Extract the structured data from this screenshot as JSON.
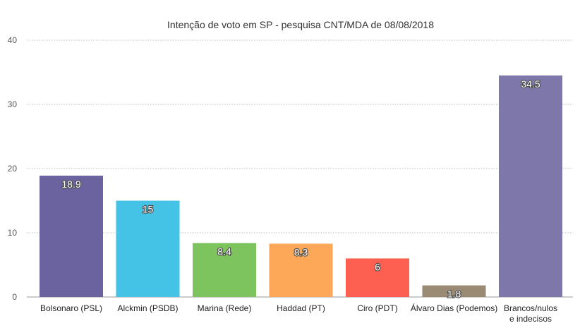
{
  "chart_data": {
    "type": "bar",
    "title": "Intenção de voto em SP - pesquisa CNT/MDA de 08/08/2018",
    "xlabel": "",
    "ylabel": "",
    "ylim": [
      0,
      40
    ],
    "yticks": [
      0,
      10,
      20,
      30,
      40
    ],
    "grid": true,
    "legend": "none",
    "categories": [
      [
        "Bolsonaro (PSL)"
      ],
      [
        "Alckmin (PSDB)"
      ],
      [
        "Marina (Rede)"
      ],
      [
        "Haddad (PT)"
      ],
      [
        "Ciro (PDT)"
      ],
      [
        "Álvaro Dias (Podemos)"
      ],
      [
        "Brancos/nulos",
        "e indecisos"
      ]
    ],
    "values": [
      18.9,
      15,
      8.4,
      8.3,
      6,
      1.8,
      34.5
    ],
    "colors": [
      "#6b63a0",
      "#45c3e6",
      "#7ec45e",
      "#fca858",
      "#fd5f50",
      "#9a8a74",
      "#7d77aa"
    ]
  }
}
